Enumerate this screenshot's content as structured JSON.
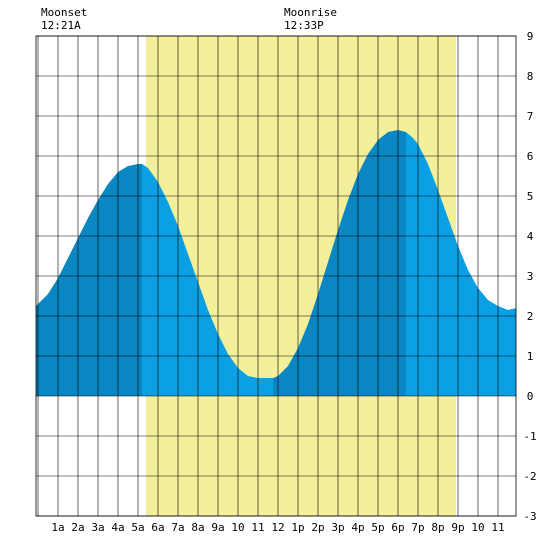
{
  "moon_events": [
    {
      "name": "Moonset",
      "time": "12:21A"
    },
    {
      "name": "Moonrise",
      "time": "12:33P"
    }
  ],
  "colors": {
    "background": "#ffffff",
    "daylight": "#f3ef9a",
    "grid": "#000000",
    "tide_rising_shade": "#0a86c2",
    "tide_falling_shade": "#0aa0e3"
  },
  "chart_data": {
    "type": "area",
    "title": "",
    "xlabel": "",
    "ylabel": "",
    "x_unit": "hour of day",
    "xlim": [
      -0.1,
      23.9
    ],
    "ylim": [
      -3,
      9
    ],
    "grid": true,
    "x_tick_values": [
      1,
      2,
      3,
      4,
      5,
      6,
      7,
      8,
      9,
      10,
      11,
      12,
      13,
      14,
      15,
      16,
      17,
      18,
      19,
      20,
      21,
      22,
      23
    ],
    "x_tick_labels": [
      "1a",
      "2a",
      "3a",
      "4a",
      "5a",
      "6a",
      "7a",
      "8a",
      "9a",
      "10",
      "11",
      "12",
      "1p",
      "2p",
      "3p",
      "4p",
      "5p",
      "6p",
      "7p",
      "8p",
      "9p",
      "10",
      "11"
    ],
    "y_ticks": [
      -3,
      -2,
      -1,
      0,
      1,
      2,
      3,
      4,
      5,
      6,
      7,
      8,
      9
    ],
    "daylight_span": [
      5.4,
      20.9
    ],
    "extremes": [
      {
        "x": 5.2,
        "y": 5.8,
        "kind": "high"
      },
      {
        "x": 11.75,
        "y": 0.45,
        "kind": "low"
      },
      {
        "x": 18.4,
        "y": 6.6,
        "kind": "high"
      }
    ],
    "series": [
      {
        "x": [
          -0.1,
          0.5,
          1,
          1.5,
          2,
          2.5,
          3,
          3.5,
          4,
          4.5,
          5,
          5.2,
          5.5,
          6,
          6.5,
          7,
          7.5,
          8,
          8.5,
          9,
          9.5,
          10,
          10.5,
          11,
          11.5,
          11.75,
          12,
          12.5,
          13,
          13.5,
          14,
          14.5,
          15,
          15.5,
          16,
          16.5,
          17,
          17.5,
          18,
          18.4,
          18.75,
          19,
          19.5,
          20,
          20.5,
          21,
          21.5,
          22,
          22.5,
          23,
          23.5,
          23.9
        ],
        "y": [
          2.25,
          2.55,
          2.95,
          3.45,
          3.95,
          4.45,
          4.9,
          5.3,
          5.6,
          5.75,
          5.8,
          5.8,
          5.7,
          5.35,
          4.85,
          4.25,
          3.55,
          2.85,
          2.15,
          1.55,
          1.05,
          0.7,
          0.5,
          0.45,
          0.45,
          0.45,
          0.5,
          0.75,
          1.2,
          1.8,
          2.55,
          3.35,
          4.15,
          4.9,
          5.55,
          6.05,
          6.4,
          6.6,
          6.65,
          6.6,
          6.45,
          6.3,
          5.8,
          5.15,
          4.45,
          3.75,
          3.15,
          2.7,
          2.4,
          2.25,
          2.15,
          2.2
        ]
      }
    ]
  }
}
